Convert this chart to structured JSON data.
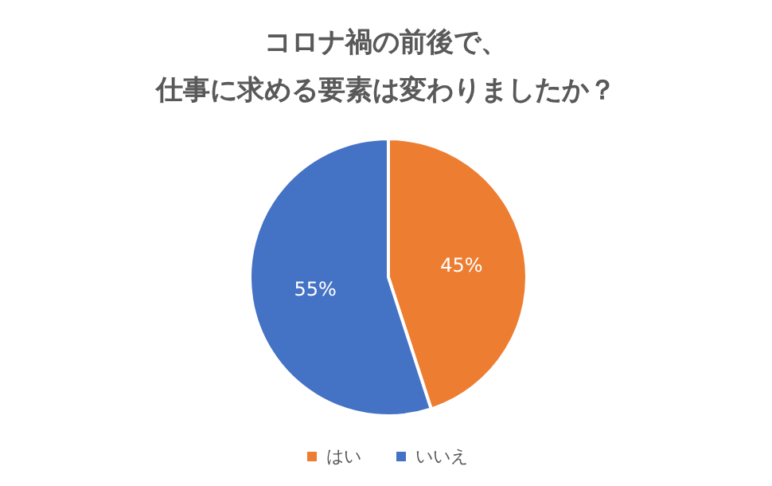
{
  "chart_data": {
    "type": "pie",
    "title": "コロナ禍の前後で、",
    "subtitle": "仕事に求める要素は変わりましたか？",
    "categories": [
      "はい",
      "いいえ"
    ],
    "values": [
      45,
      55
    ],
    "colors": [
      "#ed7d31",
      "#4472c4"
    ],
    "value_labels": [
      "45%",
      "55%"
    ],
    "legend": "bottom"
  }
}
